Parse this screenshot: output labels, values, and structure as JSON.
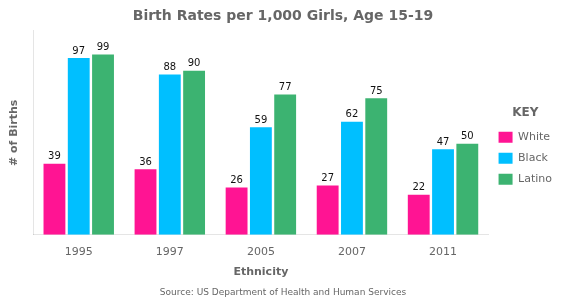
{
  "chart_data": {
    "type": "bar",
    "title": "Birth Rates per 1,000 Girls, Age 15-19",
    "x_label": "Ethnicity",
    "y_label": "# of Births",
    "source": "Source: US Department of Health and Human Services",
    "legend_title": "KEY",
    "categories": [
      "1995",
      "1997",
      "2005",
      "2007",
      "2011"
    ],
    "series": [
      {
        "name": "White",
        "color": "#FF1493",
        "values": [
          39,
          36,
          26,
          27,
          22
        ]
      },
      {
        "name": "Black",
        "color": "#00BFFF",
        "values": [
          97,
          88,
          59,
          62,
          47
        ]
      },
      {
        "name": "Latino",
        "color": "#3CB371",
        "values": [
          99,
          90,
          77,
          75,
          50
        ]
      }
    ],
    "ylim": [
      0,
      112
    ],
    "yticks": [],
    "grid": false,
    "legend": "right",
    "data_labels": true,
    "tick_labels": "x"
  }
}
